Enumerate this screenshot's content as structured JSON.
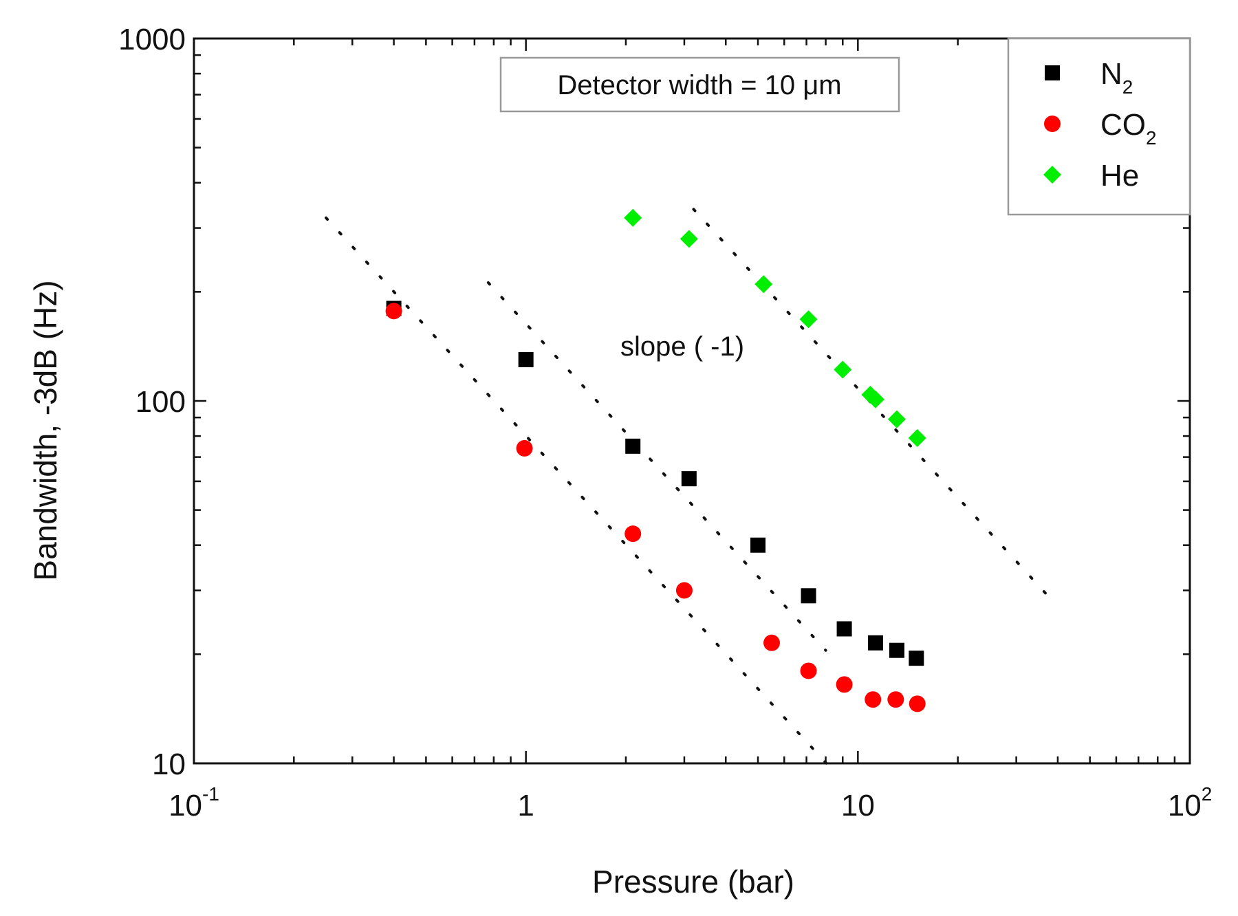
{
  "chart_data": {
    "type": "scatter",
    "xlabel": "Pressure (bar)",
    "ylabel": "Bandwidth, -3dB (Hz)",
    "xscale": "log",
    "yscale": "log",
    "xlim": [
      0.1,
      100
    ],
    "ylim": [
      10,
      1000
    ],
    "x_tick_labels": [
      {
        "value": 0.1,
        "base": "10",
        "exp": "-1"
      },
      {
        "value": 1,
        "base": "1",
        "exp": ""
      },
      {
        "value": 10,
        "base": "10",
        "exp": ""
      },
      {
        "value": 100,
        "base": "10",
        "exp": "2"
      }
    ],
    "y_tick_labels": [
      {
        "value": 10,
        "text": "10"
      },
      {
        "value": 100,
        "text": "100"
      },
      {
        "value": 1000,
        "text": "1000"
      }
    ],
    "annotation_box": "Detector width = 10 μm",
    "annotation_slope": "slope ( -1)",
    "legend_position": "top-right",
    "series": [
      {
        "name_base": "N",
        "name_sub": "2",
        "color": "#000000",
        "marker": "square",
        "points": [
          [
            0.4,
            180
          ],
          [
            1.0,
            130
          ],
          [
            2.1,
            75
          ],
          [
            3.1,
            61
          ],
          [
            5.0,
            40
          ],
          [
            7.1,
            29
          ],
          [
            9.1,
            23.5
          ],
          [
            11.3,
            21.5
          ],
          [
            13.1,
            20.5
          ],
          [
            15.0,
            19.5
          ]
        ]
      },
      {
        "name_base": "CO",
        "name_sub": "2",
        "color": "#ff0000",
        "marker": "circle",
        "points": [
          [
            0.4,
            177
          ],
          [
            0.99,
            74
          ],
          [
            2.1,
            43
          ],
          [
            3.0,
            30
          ],
          [
            5.5,
            21.5
          ],
          [
            7.1,
            18
          ],
          [
            9.1,
            16.5
          ],
          [
            11.1,
            15
          ],
          [
            13.0,
            15
          ],
          [
            15.1,
            14.6
          ]
        ]
      },
      {
        "name_base": "He",
        "name_sub": "",
        "color": "#00ee00",
        "marker": "diamond",
        "points": [
          [
            2.1,
            320
          ],
          [
            3.1,
            280
          ],
          [
            5.2,
            210
          ],
          [
            7.1,
            168
          ],
          [
            9.0,
            122
          ],
          [
            10.9,
            104
          ],
          [
            11.3,
            101
          ],
          [
            13.1,
            89
          ],
          [
            15.1,
            79
          ]
        ]
      }
    ],
    "guide_lines": [
      {
        "x1": 0.25,
        "y1": 320,
        "x2": 8.2,
        "y2": 9.8
      },
      {
        "x1": 0.77,
        "y1": 212,
        "x2": 8.0,
        "y2": 20.5
      },
      {
        "x1": 3.2,
        "y1": 338,
        "x2": 38,
        "y2": 28.5
      }
    ]
  }
}
